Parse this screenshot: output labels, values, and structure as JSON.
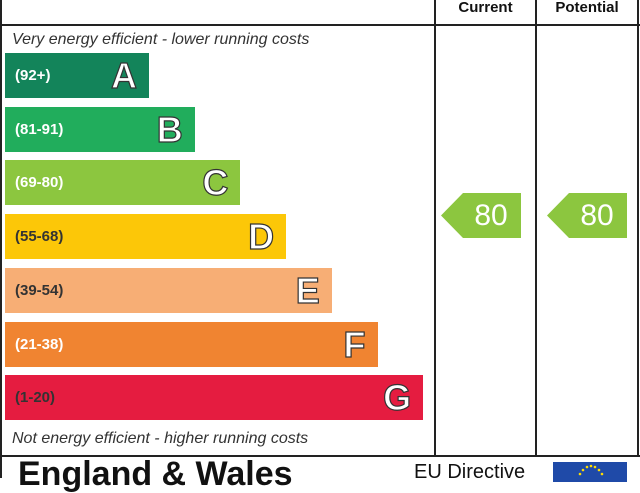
{
  "header": {
    "current": "Current",
    "potential": "Potential"
  },
  "captions": {
    "top": "Very energy efficient - lower running costs",
    "bottom": "Not energy efficient - higher running costs"
  },
  "footer": {
    "country": "England & Wales",
    "directive": "EU Directive"
  },
  "colors": {
    "A": "#13845a",
    "B": "#21ad5c",
    "C": "#8cc63f",
    "D": "#fcc708",
    "E": "#f7ae75",
    "F": "#f08431",
    "G": "#e51c40"
  },
  "chart_data": {
    "type": "bar",
    "title": "",
    "categories": [
      "A",
      "B",
      "C",
      "D",
      "E",
      "F",
      "G"
    ],
    "ranges": [
      "(92+)",
      "(81-91)",
      "(69-80)",
      "(55-68)",
      "(39-54)",
      "(21-38)",
      "(1-20)"
    ],
    "current": {
      "label": "Current",
      "value": 80,
      "band": "C",
      "color": "#8cc63f"
    },
    "potential": {
      "label": "Potential",
      "value": 80,
      "band": "C",
      "color": "#8cc63f"
    }
  }
}
